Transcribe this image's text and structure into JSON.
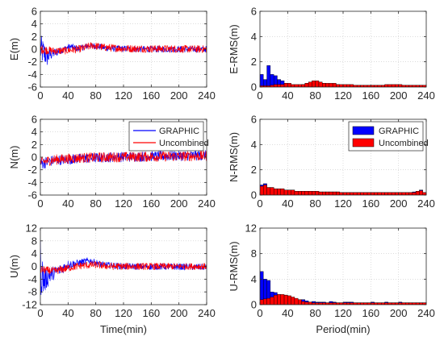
{
  "chart_data": [
    {
      "id": "E",
      "type": "line",
      "xlabel": "",
      "ylabel": "E(m)",
      "xlim": [
        0,
        240
      ],
      "ylim": [
        -6,
        6
      ],
      "xticks": [
        0,
        40,
        80,
        120,
        160,
        200,
        240
      ],
      "yticks": [
        -6,
        -4,
        -2,
        0,
        2,
        4,
        6
      ],
      "grid": true,
      "series": [
        {
          "name": "GRAPHIC",
          "color": "#0000ff",
          "amplitude_envelope": [
            [
              0,
              2.4
            ],
            [
              5,
              2.0
            ],
            [
              10,
              1.6
            ],
            [
              15,
              1.0
            ],
            [
              25,
              0.6
            ],
            [
              35,
              0.5
            ],
            [
              60,
              0.5
            ],
            [
              240,
              0.5
            ]
          ],
          "trend": [
            [
              0,
              0
            ],
            [
              10,
              -1.2
            ],
            [
              15,
              -0.8
            ],
            [
              25,
              -0.4
            ],
            [
              40,
              0.3
            ],
            [
              45,
              0.4
            ],
            [
              55,
              0.0
            ],
            [
              70,
              0.6
            ],
            [
              80,
              0.5
            ],
            [
              100,
              0.1
            ],
            [
              150,
              0.0
            ],
            [
              240,
              0.0
            ]
          ]
        },
        {
          "name": "Uncombined",
          "color": "#ff0000",
          "amplitude_envelope": [
            [
              0,
              0.7
            ],
            [
              20,
              0.6
            ],
            [
              60,
              0.6
            ],
            [
              240,
              0.6
            ]
          ],
          "trend": [
            [
              0,
              0
            ],
            [
              20,
              -0.3
            ],
            [
              40,
              -0.2
            ],
            [
              60,
              0.1
            ],
            [
              75,
              0.6
            ],
            [
              90,
              0.3
            ],
            [
              120,
              0.1
            ],
            [
              240,
              0.0
            ]
          ]
        }
      ]
    },
    {
      "id": "N",
      "type": "line",
      "xlabel": "",
      "ylabel": "N(m)",
      "xlim": [
        0,
        240
      ],
      "ylim": [
        -6,
        6
      ],
      "xticks": [
        0,
        40,
        80,
        120,
        160,
        200,
        240
      ],
      "yticks": [
        -6,
        -4,
        -2,
        0,
        2,
        4,
        6
      ],
      "grid": true,
      "legend": {
        "location": "top-right",
        "entries": [
          "GRAPHIC",
          "Uncombined"
        ]
      },
      "series": [
        {
          "name": "GRAPHIC",
          "color": "#0000ff",
          "amplitude_envelope": [
            [
              0,
              1.0
            ],
            [
              20,
              0.8
            ],
            [
              60,
              0.8
            ],
            [
              240,
              0.8
            ]
          ],
          "trend": [
            [
              0,
              -1.0
            ],
            [
              20,
              -0.5
            ],
            [
              60,
              -0.2
            ],
            [
              100,
              0.0
            ],
            [
              240,
              0.3
            ]
          ]
        },
        {
          "name": "Uncombined",
          "color": "#ff0000",
          "amplitude_envelope": [
            [
              0,
              0.8
            ],
            [
              240,
              0.8
            ]
          ],
          "trend": [
            [
              0,
              -0.8
            ],
            [
              20,
              -0.4
            ],
            [
              60,
              -0.1
            ],
            [
              100,
              0.0
            ],
            [
              240,
              0.2
            ]
          ]
        }
      ]
    },
    {
      "id": "U",
      "type": "line",
      "xlabel": "Time(min)",
      "ylabel": "U(m)",
      "xlim": [
        0,
        240
      ],
      "ylim": [
        -12,
        12
      ],
      "xticks": [
        0,
        40,
        80,
        120,
        160,
        200,
        240
      ],
      "yticks": [
        -12,
        -8,
        -4,
        0,
        4,
        8,
        12
      ],
      "grid": true,
      "series": [
        {
          "name": "GRAPHIC",
          "color": "#0000ff",
          "amplitude_envelope": [
            [
              0,
              10.0
            ],
            [
              3,
              6.0
            ],
            [
              8,
              3.5
            ],
            [
              20,
              2.0
            ],
            [
              50,
              1.2
            ],
            [
              80,
              1.0
            ],
            [
              240,
              1.0
            ]
          ],
          "trend": [
            [
              0,
              0
            ],
            [
              5,
              -4.5
            ],
            [
              15,
              -2.5
            ],
            [
              25,
              -1.5
            ],
            [
              40,
              0.5
            ],
            [
              55,
              1.0
            ],
            [
              70,
              1.8
            ],
            [
              90,
              0.5
            ],
            [
              120,
              0.0
            ],
            [
              240,
              -0.2
            ]
          ]
        },
        {
          "name": "Uncombined",
          "color": "#ff0000",
          "amplitude_envelope": [
            [
              0,
              1.2
            ],
            [
              240,
              1.0
            ]
          ],
          "trend": [
            [
              0,
              -1.0
            ],
            [
              20,
              -1.5
            ],
            [
              40,
              -0.5
            ],
            [
              60,
              0.3
            ],
            [
              80,
              0.5
            ],
            [
              100,
              0.0
            ],
            [
              240,
              0.0
            ]
          ]
        }
      ]
    },
    {
      "id": "E-RMS",
      "type": "bar",
      "xlabel": "",
      "ylabel": "E-RMS(m)",
      "xlim": [
        0,
        240
      ],
      "ylim": [
        0,
        6
      ],
      "xticks": [
        0,
        40,
        80,
        120,
        160,
        200,
        240
      ],
      "yticks": [
        0,
        2,
        4,
        6
      ],
      "grid": true,
      "bin_width": 5,
      "bin_starts": [
        0,
        5,
        10,
        15,
        20,
        25,
        30,
        35,
        40,
        45,
        50,
        55,
        60,
        65,
        70,
        75,
        80,
        85,
        90,
        95,
        100,
        105,
        110,
        115,
        120,
        125,
        130,
        135,
        140,
        145,
        150,
        155,
        160,
        165,
        170,
        175,
        180,
        185,
        190,
        195,
        200,
        205,
        210,
        215,
        220,
        225,
        230,
        235
      ],
      "series": [
        {
          "name": "GRAPHIC",
          "color": "#0000ff",
          "values": [
            1.0,
            0.6,
            1.7,
            1.0,
            0.9,
            0.6,
            0.5,
            0.3,
            0.2,
            0.15,
            0.15,
            0.15,
            0.2,
            0.3,
            0.3,
            0.4,
            0.4,
            0.3,
            0.3,
            0.2,
            0.2,
            0.2,
            0.2,
            0.1,
            0.1,
            0.1,
            0.1,
            0.1,
            0.1,
            0.1,
            0.1,
            0.1,
            0.1,
            0.1,
            0.1,
            0.1,
            0.1,
            0.1,
            0.1,
            0.1,
            0.1,
            0.1,
            0.1,
            0.1,
            0.1,
            0.1,
            0.1,
            0.1
          ]
        },
        {
          "name": "Uncombined",
          "color": "#ff0000",
          "values": [
            0.1,
            0.1,
            0.1,
            0.15,
            0.2,
            0.2,
            0.2,
            0.3,
            0.3,
            0.2,
            0.2,
            0.2,
            0.2,
            0.3,
            0.4,
            0.5,
            0.5,
            0.4,
            0.3,
            0.3,
            0.3,
            0.3,
            0.2,
            0.2,
            0.2,
            0.2,
            0.2,
            0.15,
            0.15,
            0.15,
            0.15,
            0.15,
            0.15,
            0.15,
            0.15,
            0.15,
            0.2,
            0.2,
            0.2,
            0.2,
            0.2,
            0.15,
            0.15,
            0.15,
            0.15,
            0.15,
            0.15,
            0.15
          ]
        }
      ]
    },
    {
      "id": "N-RMS",
      "type": "bar",
      "xlabel": "",
      "ylabel": "N-RMS(m)",
      "xlim": [
        0,
        240
      ],
      "ylim": [
        0,
        6
      ],
      "xticks": [
        0,
        40,
        80,
        120,
        160,
        200,
        240
      ],
      "yticks": [
        0,
        2,
        4,
        6
      ],
      "grid": true,
      "legend": {
        "location": "top-right",
        "entries": [
          "GRAPHIC",
          "Uncombined"
        ]
      },
      "bin_width": 5,
      "bin_starts": [
        0,
        5,
        10,
        15,
        20,
        25,
        30,
        35,
        40,
        45,
        50,
        55,
        60,
        65,
        70,
        75,
        80,
        85,
        90,
        95,
        100,
        105,
        110,
        115,
        120,
        125,
        130,
        135,
        140,
        145,
        150,
        155,
        160,
        165,
        170,
        175,
        180,
        185,
        190,
        195,
        200,
        205,
        210,
        215,
        220,
        225,
        230,
        235
      ],
      "series": [
        {
          "name": "GRAPHIC",
          "color": "#0000ff",
          "values": [
            0.8,
            0.9,
            0.6,
            0.6,
            0.5,
            0.5,
            0.5,
            0.4,
            0.4,
            0.4,
            0.3,
            0.3,
            0.3,
            0.3,
            0.3,
            0.3,
            0.3,
            0.25,
            0.25,
            0.25,
            0.25,
            0.25,
            0.25,
            0.2,
            0.2,
            0.2,
            0.2,
            0.2,
            0.2,
            0.2,
            0.2,
            0.2,
            0.2,
            0.2,
            0.2,
            0.2,
            0.2,
            0.2,
            0.2,
            0.2,
            0.2,
            0.2,
            0.2,
            0.2,
            0.25,
            0.3,
            0.4,
            0.2
          ]
        },
        {
          "name": "Uncombined",
          "color": "#ff0000",
          "values": [
            0.7,
            0.8,
            0.6,
            0.6,
            0.5,
            0.5,
            0.5,
            0.4,
            0.4,
            0.4,
            0.3,
            0.3,
            0.3,
            0.3,
            0.3,
            0.3,
            0.3,
            0.25,
            0.25,
            0.25,
            0.25,
            0.25,
            0.25,
            0.2,
            0.2,
            0.2,
            0.2,
            0.2,
            0.2,
            0.2,
            0.2,
            0.2,
            0.2,
            0.2,
            0.2,
            0.2,
            0.2,
            0.2,
            0.2,
            0.2,
            0.2,
            0.2,
            0.2,
            0.2,
            0.2,
            0.3,
            0.35,
            0.2
          ]
        }
      ]
    },
    {
      "id": "U-RMS",
      "type": "bar",
      "xlabel": "Period(min)",
      "ylabel": "U-RMS(m)",
      "xlim": [
        0,
        240
      ],
      "ylim": [
        0,
        12
      ],
      "xticks": [
        0,
        40,
        80,
        120,
        160,
        200,
        240
      ],
      "yticks": [
        0,
        4,
        8,
        12
      ],
      "grid": true,
      "bin_width": 5,
      "bin_starts": [
        0,
        5,
        10,
        15,
        20,
        25,
        30,
        35,
        40,
        45,
        50,
        55,
        60,
        65,
        70,
        75,
        80,
        85,
        90,
        95,
        100,
        105,
        110,
        115,
        120,
        125,
        130,
        135,
        140,
        145,
        150,
        155,
        160,
        165,
        170,
        175,
        180,
        185,
        190,
        195,
        200,
        205,
        210,
        215,
        220,
        225,
        230,
        235
      ],
      "series": [
        {
          "name": "GRAPHIC",
          "color": "#0000ff",
          "values": [
            5.2,
            4.0,
            3.8,
            2.0,
            1.9,
            1.6,
            1.5,
            1.5,
            1.2,
            1.0,
            0.8,
            0.6,
            0.8,
            0.6,
            0.4,
            0.5,
            0.4,
            0.4,
            0.4,
            0.3,
            0.5,
            0.4,
            0.3,
            0.3,
            0.4,
            0.4,
            0.4,
            0.3,
            0.3,
            0.3,
            0.3,
            0.3,
            0.4,
            0.3,
            0.3,
            0.3,
            0.4,
            0.3,
            0.3,
            0.3,
            0.4,
            0.3,
            0.3,
            0.3,
            0.3,
            0.3,
            0.3,
            0.3
          ]
        },
        {
          "name": "Uncombined",
          "color": "#ff0000",
          "values": [
            0.8,
            0.9,
            1.0,
            1.2,
            1.5,
            1.6,
            1.6,
            1.5,
            1.4,
            1.2,
            1.0,
            0.8,
            0.5,
            0.4,
            0.4,
            0.3,
            0.3,
            0.3,
            0.3,
            0.3,
            0.3,
            0.3,
            0.3,
            0.3,
            0.3,
            0.3,
            0.3,
            0.3,
            0.3,
            0.3,
            0.3,
            0.3,
            0.3,
            0.3,
            0.3,
            0.3,
            0.3,
            0.3,
            0.3,
            0.3,
            0.3,
            0.3,
            0.3,
            0.3,
            0.3,
            0.3,
            0.3,
            0.3
          ]
        }
      ]
    }
  ]
}
